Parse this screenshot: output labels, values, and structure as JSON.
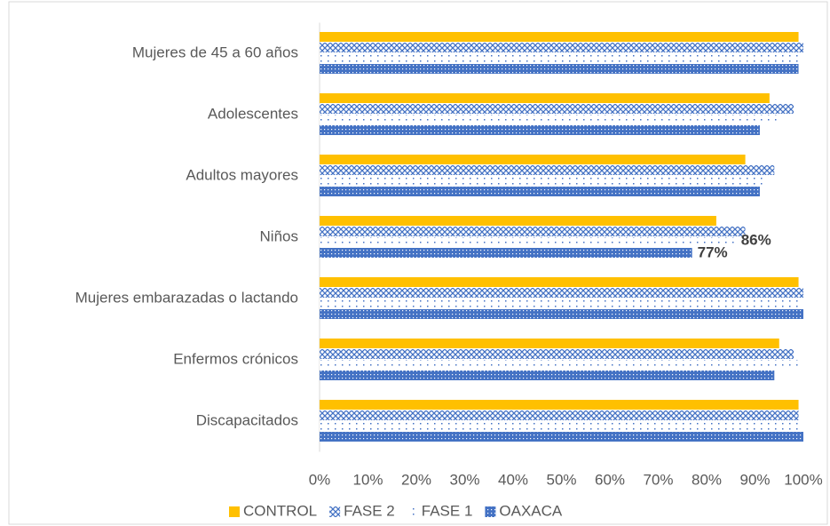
{
  "chart_data": {
    "type": "bar",
    "orientation": "horizontal",
    "categories": [
      "Mujeres de 45 a 60 años",
      "Adolescentes",
      "Adultos mayores",
      "Niños",
      "Mujeres embarazadas o lactando",
      "Enfermos crónicos",
      "Discapacitados"
    ],
    "series": [
      {
        "name": "CONTROL",
        "color": "#ffc000",
        "pattern": "solid",
        "values": [
          99,
          93,
          88,
          82,
          99,
          95,
          99
        ]
      },
      {
        "name": "FASE 2",
        "color": "#4472c4",
        "pattern": "crosshatch",
        "values": [
          100,
          98,
          94,
          88,
          100,
          98,
          99
        ]
      },
      {
        "name": "FASE 1",
        "color": "#4472c4",
        "pattern": "sparse-dots",
        "values": [
          100,
          95,
          92,
          86,
          100,
          99,
          99
        ],
        "value_labels": [
          null,
          null,
          null,
          "86%",
          null,
          null,
          null
        ]
      },
      {
        "name": "OAXACA",
        "color": "#4472c4",
        "pattern": "dense-dots",
        "values": [
          99,
          91,
          91,
          77,
          100,
          94,
          100
        ],
        "value_labels": [
          null,
          null,
          null,
          "77%",
          null,
          null,
          null
        ]
      }
    ],
    "xlim": [
      0,
      100
    ],
    "xticks": [
      {
        "value": 0,
        "label": "0%"
      },
      {
        "value": 10,
        "label": "10%"
      },
      {
        "value": 20,
        "label": "20%"
      },
      {
        "value": 30,
        "label": "30%"
      },
      {
        "value": 40,
        "label": "40%"
      },
      {
        "value": 50,
        "label": "50%"
      },
      {
        "value": 60,
        "label": "60%"
      },
      {
        "value": 70,
        "label": "70%"
      },
      {
        "value": 80,
        "label": "80%"
      },
      {
        "value": 90,
        "label": "90%"
      },
      {
        "value": 100,
        "label": "100%"
      }
    ],
    "legend": "bottom"
  }
}
